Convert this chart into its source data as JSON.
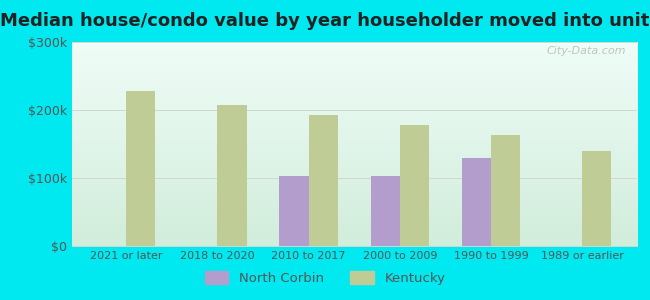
{
  "title": "Median house/condo value by year householder moved into unit",
  "categories": [
    "2021 or later",
    "2018 to 2020",
    "2010 to 2017",
    "2000 to 2009",
    "1990 to 1999",
    "1989 or earlier"
  ],
  "north_corbin": [
    0,
    0,
    103000,
    103000,
    130000,
    0
  ],
  "kentucky": [
    228000,
    207000,
    193000,
    178000,
    163000,
    140000
  ],
  "north_corbin_color": "#b39dcc",
  "kentucky_color": "#c0cc96",
  "background_outer": "#00e8f0",
  "bar_width": 0.32,
  "ylim": [
    0,
    300000
  ],
  "yticks": [
    0,
    100000,
    200000,
    300000
  ],
  "ytick_labels": [
    "$0",
    "$100k",
    "$200k",
    "$300k"
  ],
  "legend_nc": "North Corbin",
  "legend_ky": "Kentucky",
  "watermark": "City-Data.com",
  "title_fontsize": 13,
  "grid_color": "#d0d8d0",
  "tick_color": "#555555",
  "label_fontsize": 8.0
}
